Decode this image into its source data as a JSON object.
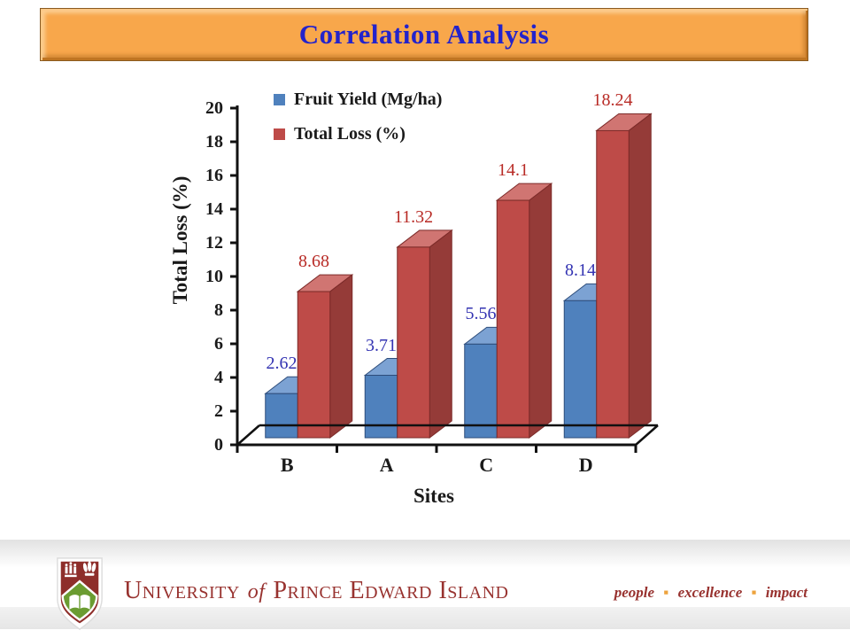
{
  "slide": {
    "title": "Correlation Analysis"
  },
  "chart_data": {
    "type": "bar",
    "style": "3d-clustered-column",
    "categories": [
      "B",
      "A",
      "C",
      "D"
    ],
    "series": [
      {
        "name": "Fruit Yield (Mg/ha)",
        "values": [
          2.62,
          3.71,
          5.56,
          8.14
        ],
        "labels": [
          "2.62",
          "3.71",
          "5.56",
          "8.14"
        ],
        "color": "#4F81BD",
        "color_top": "#7CA2D3",
        "color_side": "#3A609A",
        "edge_color": "#2E4D7B",
        "label_color": "#3333B2"
      },
      {
        "name": "Total Loss (%)",
        "values": [
          8.68,
          11.32,
          14.1,
          18.24
        ],
        "labels": [
          "8.68",
          "11.32",
          "14.1",
          "18.24"
        ],
        "color": "#BE4B48",
        "color_top": "#D07572",
        "color_side": "#953B38",
        "edge_color": "#7C2B29",
        "label_color": "#B82B26"
      }
    ],
    "xlabel": "Sites",
    "ylabel": "Total Loss (%)",
    "ylim": [
      0,
      20
    ],
    "ytick_step": 2,
    "grid": false,
    "legend_position": "top-left",
    "axis_color": "#111111"
  },
  "footer": {
    "university_part1": "University",
    "university_of": "of",
    "university_part2": "Prince Edward Island",
    "tagline": [
      "people",
      "excellence",
      "impact"
    ],
    "brand_maroon": "#98322F",
    "dot_color": "#EDA33E",
    "logo": {
      "shield_top_color": "#8E2E2A",
      "shield_bottom_color": "#6B9C31"
    }
  }
}
